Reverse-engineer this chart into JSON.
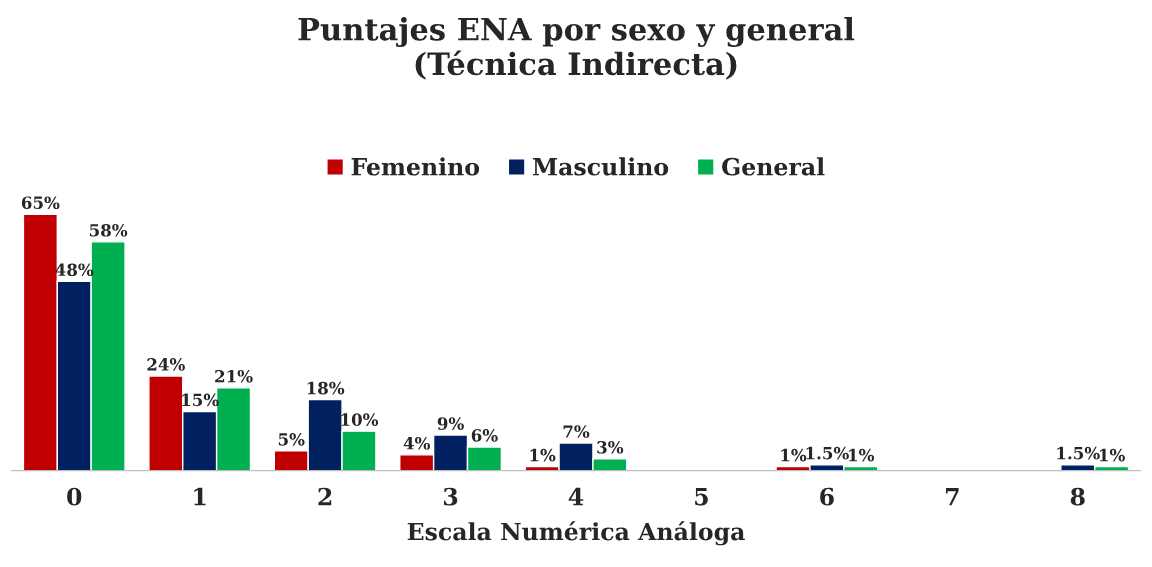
{
  "chart_data": {
    "type": "bar",
    "title": "Puntajes ENA por sexo y general\n(Técnica Indirecta)",
    "xlabel": "Escala Numérica Análoga",
    "categories": [
      "0",
      "1",
      "2",
      "3",
      "4",
      "5",
      "6",
      "7",
      "8"
    ],
    "series": [
      {
        "name": "Femenino",
        "color": "#c00000",
        "values": [
          65,
          24,
          5,
          4,
          1,
          null,
          1,
          null,
          null
        ],
        "value_labels": [
          "65%",
          "24%",
          "5%",
          "4%",
          "1%",
          null,
          "1%",
          null,
          null
        ]
      },
      {
        "name": "Masculino",
        "color": "#002060",
        "values": [
          48,
          15,
          18,
          9,
          7,
          null,
          1.5,
          null,
          1.5
        ],
        "value_labels": [
          "48%",
          "15%",
          "18%",
          "9%",
          "7%",
          null,
          "1.5%",
          null,
          "1.5%"
        ]
      },
      {
        "name": "General",
        "color": "#00b050",
        "values": [
          58,
          21,
          10,
          6,
          3,
          null,
          1,
          null,
          1
        ],
        "value_labels": [
          "58%",
          "21%",
          "10%",
          "6%",
          "3%",
          null,
          "1%",
          null,
          "1%"
        ]
      }
    ],
    "legend": "top",
    "grid": false
  }
}
